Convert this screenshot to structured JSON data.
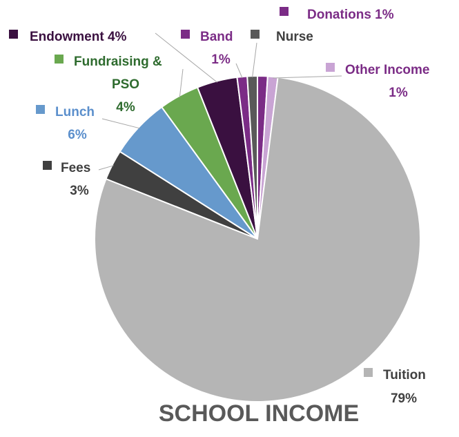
{
  "chart_data": {
    "type": "pie",
    "title": "SCHOOL INCOME",
    "slices": [
      {
        "name": "Donations",
        "value": 1,
        "label": "1%",
        "color": "#7B2C86",
        "text_color": "#7B2C86"
      },
      {
        "name": "Other Income",
        "value": 1,
        "label": "1%",
        "color": "#C9A4D4",
        "text_color": "#7B2C86"
      },
      {
        "name": "Tuition",
        "value": 79,
        "label": "79%",
        "color": "#B5B5B5",
        "text_color": "#404040"
      },
      {
        "name": "Fees",
        "value": 3,
        "label": "3%",
        "color": "#404040",
        "text_color": "#404040"
      },
      {
        "name": "Lunch",
        "value": 6,
        "label": "6%",
        "color": "#6699CC",
        "text_color": "#5B8FCC"
      },
      {
        "name": "Fundraising & PSO",
        "value": 4,
        "label": "4%",
        "color": "#6AA84F",
        "text_color": "#2E6B2E"
      },
      {
        "name": "Endowment",
        "value": 4,
        "label": "4%",
        "color": "#3A1040",
        "text_color": "#3A1040"
      },
      {
        "name": "Band",
        "value": 1,
        "label": "1%",
        "color": "#7B2C86",
        "text_color": "#7B2C86"
      },
      {
        "name": "Nurse",
        "value": 1,
        "label": "1%",
        "color": "#595959",
        "text_color": "#404040"
      }
    ],
    "legend": "none (labels placed next to slices)"
  }
}
